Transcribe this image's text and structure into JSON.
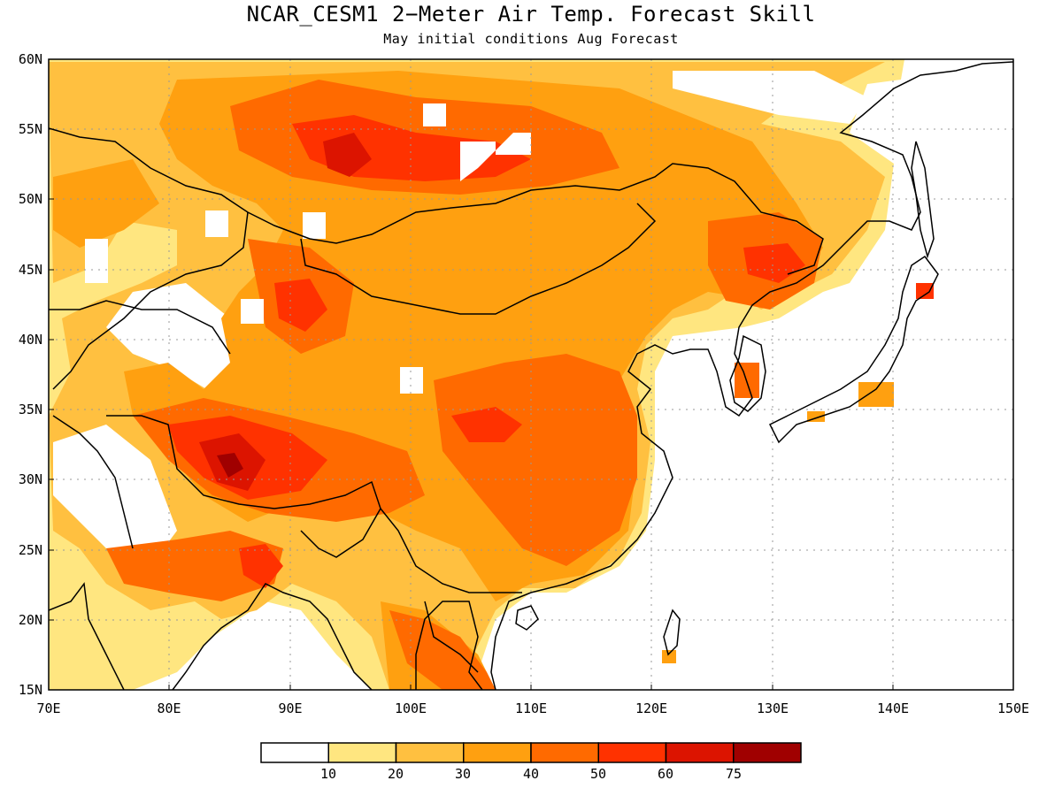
{
  "title": "NCAR_CESM1 2−Meter Air Temp. Forecast Skill",
  "subtitle": "May initial conditions  Aug Forecast",
  "lat_labels": [
    "60N",
    "55N",
    "50N",
    "45N",
    "40N",
    "35N",
    "30N",
    "25N",
    "20N",
    "15N"
  ],
  "lon_labels": [
    "70E",
    "80E",
    "90E",
    "100E",
    "110E",
    "120E",
    "130E",
    "140E",
    "150E"
  ],
  "colorbar": {
    "labels": [
      "10",
      "20",
      "30",
      "40",
      "50",
      "60",
      "75"
    ],
    "colors": [
      "#ffffff",
      "#ffe680",
      "#ffc040",
      "#ffa010",
      "#ff6a00",
      "#ff3200",
      "#dc1400",
      "#a00000"
    ]
  }
}
